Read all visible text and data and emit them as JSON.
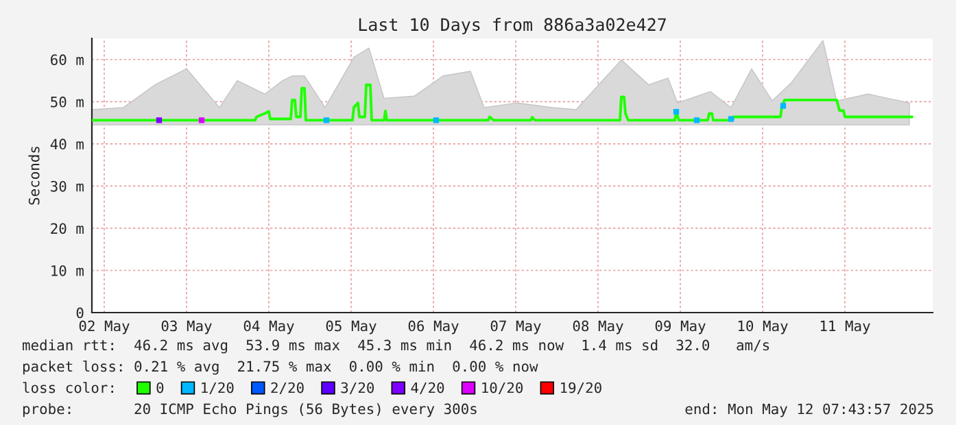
{
  "chart_data": {
    "type": "line",
    "title": "Last 10 Days from 886a3a02e427",
    "ylabel": "Seconds",
    "xlim": [
      "2025-05-02T08:24",
      "2025-05-12T13:36"
    ],
    "ylim": [
      0,
      65
    ],
    "xticks": [
      {
        "value": "2025-05-02T12:00",
        "label": "02 May"
      },
      {
        "value": "2025-05-03T12:00",
        "label": "03 May"
      },
      {
        "value": "2025-05-04T12:00",
        "label": "04 May"
      },
      {
        "value": "2025-05-05T12:00",
        "label": "05 May"
      },
      {
        "value": "2025-05-06T12:00",
        "label": "06 May"
      },
      {
        "value": "2025-05-07T12:00",
        "label": "07 May"
      },
      {
        "value": "2025-05-08T12:00",
        "label": "08 May"
      },
      {
        "value": "2025-05-09T12:00",
        "label": "09 May"
      },
      {
        "value": "2025-05-10T12:00",
        "label": "10 May"
      },
      {
        "value": "2025-05-11T12:00",
        "label": "11 May"
      }
    ],
    "yticks": [
      0,
      {
        "value": 10,
        "label": "10 m"
      },
      {
        "value": 20,
        "label": "20 m"
      },
      {
        "value": 30,
        "label": "30 m"
      },
      {
        "value": 40,
        "label": "40 m"
      },
      {
        "value": 50,
        "label": "50 m"
      },
      {
        "value": 60,
        "label": "60 m"
      }
    ],
    "grid": true,
    "legend": "bottom",
    "legend_title": "loss color:",
    "series": [
      {
        "type": "area",
        "color": "#d9d9d9",
        "x": [
          "2025-05-02T08:24",
          "2025-05-02T17:36",
          "2025-05-03T02:48",
          "2025-05-03T12:00",
          "2025-05-03T21:36",
          "2025-05-04T02:48",
          "2025-05-04T10:48",
          "2025-05-04T16:00",
          "2025-05-04T18:48",
          "2025-05-04T22:24",
          "2025-05-05T04:24",
          "2025-05-05T12:48",
          "2025-05-05T17:12",
          "2025-05-05T21:36",
          "2025-05-06T06:24",
          "2025-05-06T14:48",
          "2025-05-06T22:48",
          "2025-05-07T02:48",
          "2025-05-07T12:24",
          "2025-05-07T22:48",
          "2025-05-08T05:36",
          "2025-05-08T18:48",
          "2025-05-09T02:48",
          "2025-05-09T08:24",
          "2025-05-09T11:12",
          "2025-05-09T20:48",
          "2025-05-10T02:48",
          "2025-05-10T08:48",
          "2025-05-10T14:48",
          "2025-05-10T20:24",
          "2025-05-11T05:36",
          "2025-05-11T09:36",
          "2025-05-11T18:48",
          "2025-05-12T06:48"
        ],
        "values": [
          null,
          null,
          null,
          null,
          null,
          null,
          null,
          null,
          null,
          null,
          null,
          null,
          null,
          null,
          null,
          null,
          null,
          null,
          null,
          null,
          null,
          null,
          null,
          null,
          null,
          null,
          null,
          null,
          null,
          null,
          null,
          null,
          null,
          null
        ],
        "upper": [
          48.1,
          48.6,
          54,
          57.8,
          48.6,
          55,
          51.8,
          55,
          56.1,
          56.1,
          48.6,
          60.5,
          62.7,
          50.8,
          51.3,
          56.1,
          57.2,
          48.6,
          49.7,
          48.6,
          48.1,
          59.9,
          54,
          55.6,
          49.7,
          52.4,
          48.6,
          57.8,
          50.2,
          54.5,
          64.5,
          50.2,
          51.8,
          49.7
        ],
        "lower": [
          44.5,
          44.5,
          44.5,
          44.5,
          44.5,
          44.5,
          44.5,
          44.5,
          44.5,
          44.5,
          44.5,
          44.5,
          44.5,
          44.5,
          44.5,
          44.5,
          44.5,
          44.5,
          44.5,
          44.5,
          44.5,
          44.5,
          44.5,
          44.5,
          44.5,
          44.5,
          44.5,
          44.5,
          44.5,
          44.5,
          44.5,
          44.5,
          44.5,
          44.5
        ]
      },
      {
        "name": "0",
        "color": "#20ff00",
        "x": [
          "2025-05-02T08:24",
          "2025-05-03T12:00",
          "2025-05-04T08:00",
          "2025-05-04T08:24",
          "2025-05-04T10:48",
          "2025-05-04T12:00",
          "2025-05-04T12:24",
          "2025-05-04T18:24",
          "2025-05-04T18:48",
          "2025-05-04T19:36",
          "2025-05-04T20:00",
          "2025-05-04T21:12",
          "2025-05-04T21:36",
          "2025-05-04T22:24",
          "2025-05-04T22:48",
          "2025-05-05T12:24",
          "2025-05-05T12:48",
          "2025-05-05T14:00",
          "2025-05-05T14:24",
          "2025-05-05T16:00",
          "2025-05-05T16:24",
          "2025-05-05T17:36",
          "2025-05-05T18:00",
          "2025-05-05T21:36",
          "2025-05-05T22:00",
          "2025-05-05T22:24",
          "2025-05-07T04:00",
          "2025-05-07T04:24",
          "2025-05-07T05:36",
          "2025-05-07T16:24",
          "2025-05-07T16:48",
          "2025-05-07T17:36",
          "2025-05-08T18:24",
          "2025-05-08T18:48",
          "2025-05-08T19:36",
          "2025-05-08T20:00",
          "2025-05-08T20:48",
          "2025-05-09T10:24",
          "2025-05-09T10:48",
          "2025-05-09T11:36",
          "2025-05-09T20:00",
          "2025-05-09T20:24",
          "2025-05-09T21:12",
          "2025-05-09T21:36",
          "2025-05-10T03:12",
          "2025-05-10T03:36",
          "2025-05-10T17:12",
          "2025-05-10T17:36",
          "2025-05-10T18:24",
          "2025-05-11T09:36",
          "2025-05-11T10:24",
          "2025-05-11T11:36",
          "2025-05-11T12:00",
          "2025-05-12T07:36"
        ],
        "values": [
          45.6,
          45.6,
          45.6,
          46.4,
          47.2,
          47.7,
          45.9,
          45.9,
          50.4,
          50.4,
          46.4,
          46.4,
          53.2,
          53.2,
          45.6,
          45.6,
          48.7,
          49.7,
          46.4,
          46.4,
          54,
          54,
          45.6,
          45.6,
          47.8,
          45.6,
          45.6,
          46.4,
          45.6,
          45.6,
          46.3,
          45.6,
          45.6,
          51.1,
          51.1,
          47.2,
          45.6,
          45.6,
          47.6,
          45.6,
          45.6,
          47.2,
          47.2,
          45.6,
          45.6,
          46.4,
          46.4,
          48.7,
          50.4,
          50.4,
          47.9,
          47.9,
          46.4,
          46.4
        ]
      },
      {
        "type": "scatter",
        "name": "1/20",
        "color": "#00b8ff",
        "x": [
          "2025-05-05T04:48",
          "2025-05-06T12:48",
          "2025-05-09T10:48",
          "2025-05-09T16:48",
          "2025-05-10T02:48",
          "2025-05-10T18:00"
        ],
        "values": [
          45.6,
          45.6,
          47.6,
          45.6,
          45.9,
          49
        ]
      },
      {
        "type": "scatter",
        "name": "2/20",
        "color": "#0059ff"
      },
      {
        "type": "scatter",
        "name": "3/20",
        "color": "#5e00ff"
      },
      {
        "type": "scatter",
        "name": "4/20",
        "color": "#7e00ff",
        "x": [
          "2025-05-03T04:00"
        ],
        "values": [
          45.6
        ]
      },
      {
        "type": "scatter",
        "name": "10/20",
        "color": "#dd00ff",
        "x": [
          "2025-05-03T16:24"
        ],
        "values": [
          45.6
        ]
      },
      {
        "type": "scatter",
        "name": "19/20",
        "color": "#ff0000"
      }
    ],
    "annotations": [
      "median rtt:  46.2 ms avg  53.9 ms max  45.3 ms min  46.2 ms now  1.4 ms sd  32.0   am/s",
      "packet loss: 0.21 % avg  21.75 % max  0.00 % min  0.00 % now",
      "probe:       20 ICMP Echo Pings (56 Bytes) every 300s",
      "end: Mon May 12 07:43:57 2025"
    ]
  }
}
